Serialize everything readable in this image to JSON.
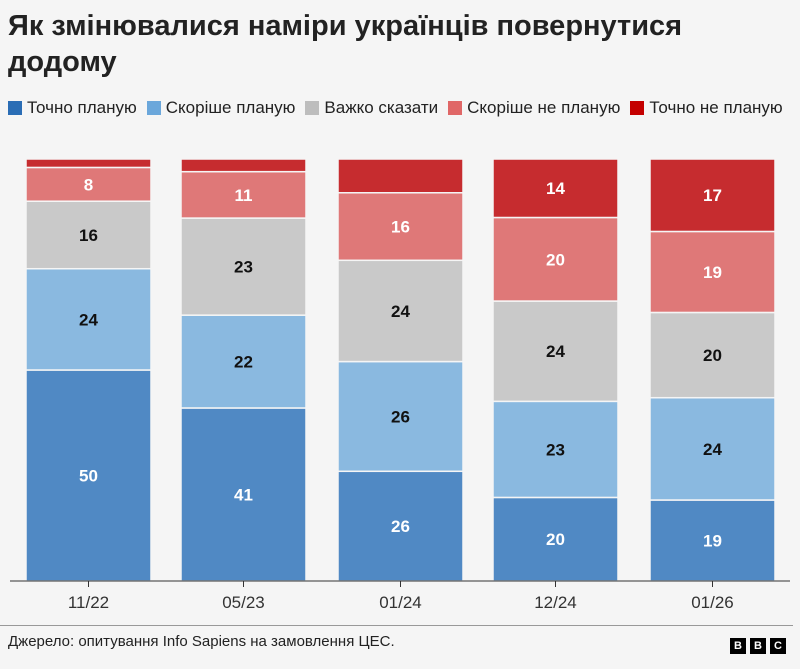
{
  "chart_data": {
    "type": "bar",
    "stacked": true,
    "title": "Як змінювалися наміри українців повернутися додому",
    "categories": [
      "11/22",
      "05/23",
      "01/24",
      "12/24",
      "01/26"
    ],
    "series": [
      {
        "name": "Точно планую",
        "color": "#5089c4",
        "legend_color": "#2a6db5",
        "label_color": "#ffffff",
        "values": [
          50,
          41,
          26,
          20,
          19
        ]
      },
      {
        "name": "Скоріше планую",
        "color": "#8ab9e0",
        "legend_color": "#6ba7db",
        "label_color": "#111111",
        "values": [
          24,
          22,
          26,
          23,
          24
        ]
      },
      {
        "name": "Важко сказати",
        "color": "#c9c9c9",
        "legend_color": "#bdbdbd",
        "label_color": "#111111",
        "values": [
          16,
          23,
          24,
          24,
          20
        ]
      },
      {
        "name": "Скоріше не планую",
        "color": "#df7878",
        "legend_color": "#e06767",
        "label_color": "#ffffff",
        "values": [
          8,
          11,
          16,
          20,
          19
        ]
      },
      {
        "name": "Точно не планую",
        "color": "#c62c2f",
        "legend_color": "#c40000",
        "label_color": "#ffffff",
        "values": [
          2,
          3,
          8,
          14,
          17
        ],
        "labeled": [
          false,
          false,
          false,
          true,
          true
        ]
      }
    ],
    "legend_position": "top-left",
    "grid": false
  },
  "footer": {
    "source": "Джерело: опитування Info Sapiens на замовлення ЦЕС.",
    "logo": [
      "B",
      "B",
      "C"
    ]
  }
}
